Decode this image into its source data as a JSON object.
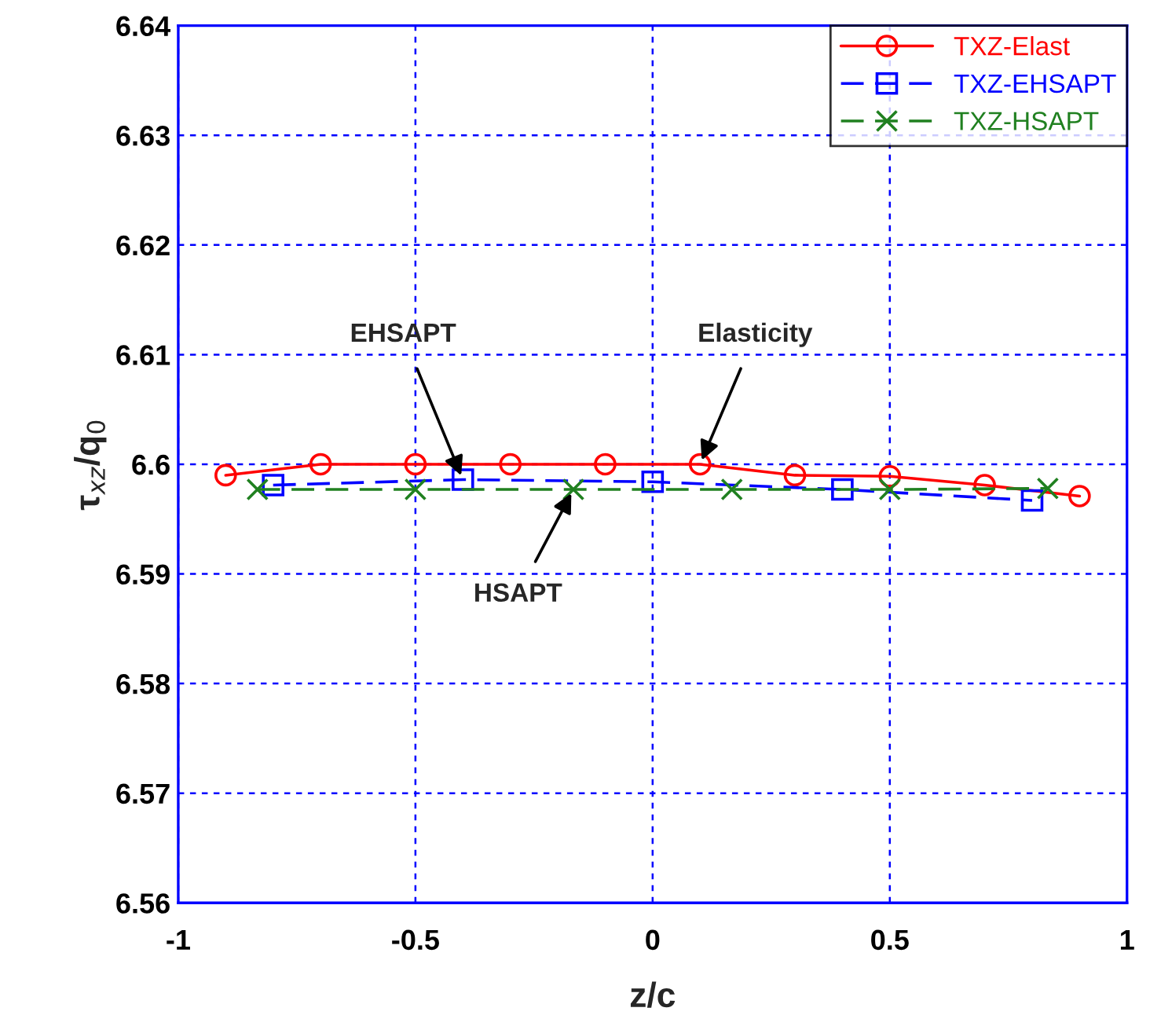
{
  "chart_data": {
    "type": "line",
    "xlabel": "z/c",
    "ylabel": "τ$_{xz}$/q$_{0}$",
    "xlim": [
      -1,
      1
    ],
    "ylim": [
      6.56,
      6.64
    ],
    "xticks": [
      -1,
      -0.5,
      0,
      0.5,
      1
    ],
    "yticks": [
      6.56,
      6.57,
      6.58,
      6.59,
      6.6,
      6.61,
      6.62,
      6.63,
      6.64
    ],
    "grid": true,
    "legend": "top right",
    "series": [
      {
        "name": "TXZ-Elast",
        "color": "#ff0000",
        "marker": "circle",
        "line_style": "solid",
        "x": [
          -0.9,
          -0.7,
          -0.5,
          -0.3,
          -0.1,
          0.1,
          0.3,
          0.5,
          0.7,
          0.9
        ],
        "values": [
          6.599,
          6.6,
          6.6,
          6.6,
          6.6,
          6.6,
          6.599,
          6.5989,
          6.5981,
          6.5971
        ]
      },
      {
        "name": "TXZ-EHSAPT",
        "color": "#0000ff",
        "marker": "square",
        "line_style": "dashed",
        "x": [
          -0.8,
          -0.4,
          0,
          0.4,
          0.8
        ],
        "values": [
          6.5981,
          6.5986,
          6.5984,
          6.5977,
          6.5967
        ]
      },
      {
        "name": "TXZ-HSAPT",
        "color": "#208020",
        "marker": "cross",
        "line_style": "dashed",
        "x": [
          -0.833,
          -0.5,
          -0.167,
          0.167,
          0.5,
          0.833
        ],
        "values": [
          6.5977,
          6.5977,
          6.5977,
          6.5977,
          6.5977,
          6.5978
        ]
      }
    ],
    "annotations": [
      {
        "text": "EHSAPT",
        "x": -0.4,
        "y": 6.5986
      },
      {
        "text": "Elasticity",
        "x": 0.1,
        "y": 6.6
      },
      {
        "text": "HSAPT",
        "x": -0.167,
        "y": 6.5977
      }
    ]
  }
}
